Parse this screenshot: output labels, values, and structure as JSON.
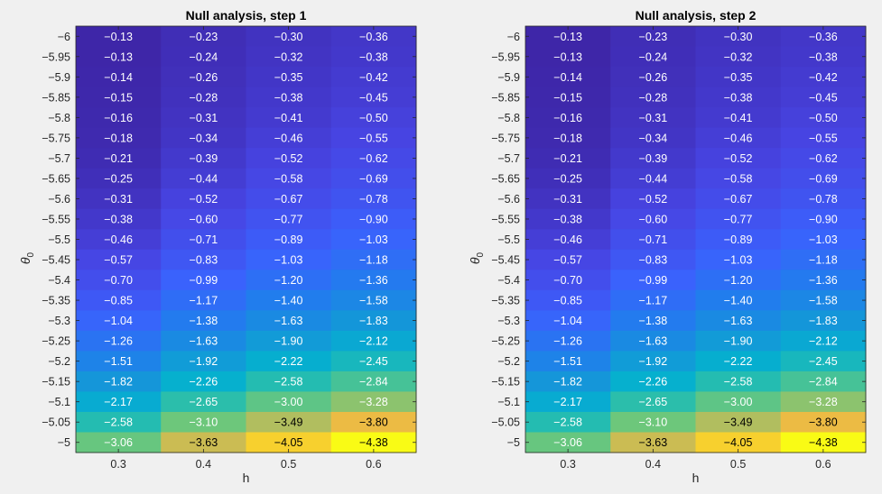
{
  "chart_data": [
    {
      "type": "heatmap",
      "title": "Null analysis, step 1",
      "xlabel": "h",
      "ylabel": "θ",
      "ylabel_sub": "0",
      "x": [
        "0.3",
        "0.4",
        "0.5",
        "0.6"
      ],
      "y": [
        "-6",
        "-5.95",
        "-5.9",
        "-5.85",
        "-5.8",
        "-5.75",
        "-5.7",
        "-5.65",
        "-5.6",
        "-5.55",
        "-5.5",
        "-5.45",
        "-5.4",
        "-5.35",
        "-5.3",
        "-5.25",
        "-5.2",
        "-5.15",
        "-5.1",
        "-5.05",
        "-5"
      ],
      "values": [
        [
          -0.13,
          -0.23,
          -0.3,
          -0.36
        ],
        [
          -0.13,
          -0.24,
          -0.32,
          -0.38
        ],
        [
          -0.14,
          -0.26,
          -0.35,
          -0.42
        ],
        [
          -0.15,
          -0.28,
          -0.38,
          -0.45
        ],
        [
          -0.16,
          -0.31,
          -0.41,
          -0.5
        ],
        [
          -0.18,
          -0.34,
          -0.46,
          -0.55
        ],
        [
          -0.21,
          -0.39,
          -0.52,
          -0.62
        ],
        [
          -0.25,
          -0.44,
          -0.58,
          -0.69
        ],
        [
          -0.31,
          -0.52,
          -0.67,
          -0.78
        ],
        [
          -0.38,
          -0.6,
          -0.77,
          -0.9
        ],
        [
          -0.46,
          -0.71,
          -0.89,
          -1.03
        ],
        [
          -0.57,
          -0.83,
          -1.03,
          -1.18
        ],
        [
          -0.7,
          -0.99,
          -1.2,
          -1.36
        ],
        [
          -0.85,
          -1.17,
          -1.4,
          -1.58
        ],
        [
          -1.04,
          -1.38,
          -1.63,
          -1.83
        ],
        [
          -1.26,
          -1.63,
          -1.9,
          -2.12
        ],
        [
          -1.51,
          -1.92,
          -2.22,
          -2.45
        ],
        [
          -1.82,
          -2.26,
          -2.58,
          -2.84
        ],
        [
          -2.17,
          -2.65,
          -3.0,
          -3.28
        ],
        [
          -2.58,
          -3.1,
          -3.49,
          -3.8
        ],
        [
          -3.06,
          -3.63,
          -4.05,
          -4.38
        ]
      ],
      "colormap": "parula",
      "grid": false
    },
    {
      "type": "heatmap",
      "title": "Null analysis, step 2",
      "xlabel": "h",
      "ylabel": "θ",
      "ylabel_sub": "0",
      "x": [
        "0.3",
        "0.4",
        "0.5",
        "0.6"
      ],
      "y": [
        "-6",
        "-5.95",
        "-5.9",
        "-5.85",
        "-5.8",
        "-5.75",
        "-5.7",
        "-5.65",
        "-5.6",
        "-5.55",
        "-5.5",
        "-5.45",
        "-5.4",
        "-5.35",
        "-5.3",
        "-5.25",
        "-5.2",
        "-5.15",
        "-5.1",
        "-5.05",
        "-5"
      ],
      "values": [
        [
          -0.13,
          -0.23,
          -0.3,
          -0.36
        ],
        [
          -0.13,
          -0.24,
          -0.32,
          -0.38
        ],
        [
          -0.14,
          -0.26,
          -0.35,
          -0.42
        ],
        [
          -0.15,
          -0.28,
          -0.38,
          -0.45
        ],
        [
          -0.16,
          -0.31,
          -0.41,
          -0.5
        ],
        [
          -0.18,
          -0.34,
          -0.46,
          -0.55
        ],
        [
          -0.21,
          -0.39,
          -0.52,
          -0.62
        ],
        [
          -0.25,
          -0.44,
          -0.58,
          -0.69
        ],
        [
          -0.31,
          -0.52,
          -0.67,
          -0.78
        ],
        [
          -0.38,
          -0.6,
          -0.77,
          -0.9
        ],
        [
          -0.46,
          -0.71,
          -0.89,
          -1.03
        ],
        [
          -0.57,
          -0.83,
          -1.03,
          -1.18
        ],
        [
          -0.7,
          -0.99,
          -1.2,
          -1.36
        ],
        [
          -0.85,
          -1.17,
          -1.4,
          -1.58
        ],
        [
          -1.04,
          -1.38,
          -1.63,
          -1.83
        ],
        [
          -1.26,
          -1.63,
          -1.9,
          -2.12
        ],
        [
          -1.51,
          -1.92,
          -2.22,
          -2.45
        ],
        [
          -1.82,
          -2.26,
          -2.58,
          -2.84
        ],
        [
          -2.17,
          -2.65,
          -3.0,
          -3.28
        ],
        [
          -2.58,
          -3.1,
          -3.49,
          -3.8
        ],
        [
          -3.06,
          -3.63,
          -4.05,
          -4.38
        ]
      ],
      "colormap": "parula",
      "grid": false
    }
  ]
}
